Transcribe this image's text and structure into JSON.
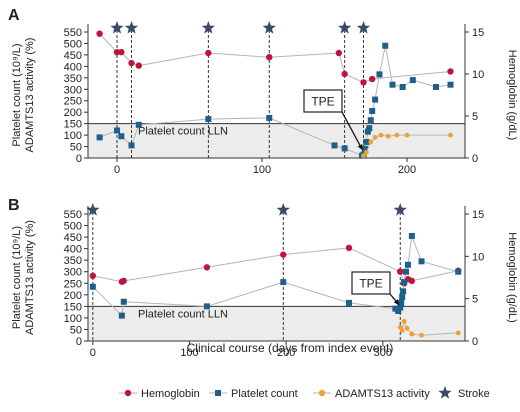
{
  "colors": {
    "hemoglobin": "#c0153a",
    "platelet": "#1f5f8b",
    "adamts13": "#f0a030",
    "stroke": "#3a4a6b",
    "llnFill": "#ececec",
    "connector": "#b5b5b5"
  },
  "xlabel": "Clinical course (days from index event)",
  "legend": {
    "position": "bottom",
    "items": [
      {
        "label": "Hemoglobin",
        "marker": "circle",
        "color": "#c0153a"
      },
      {
        "label": "Platelet count",
        "marker": "square",
        "color": "#1f5f8b"
      },
      {
        "label": "ADAMTS13 activity",
        "marker": "circle",
        "color": "#f0a030"
      },
      {
        "label": "Stroke",
        "marker": "star-icon",
        "color": "#3a4a6b"
      }
    ]
  },
  "chart_data": [
    {
      "panel": "A",
      "type": "line",
      "ylabel_left_line1": "Platelet count (10⁹/L)",
      "ylabel_left_line2": "ADAMTS13 activity (%)",
      "ylabel_right": "Hemoglobin (g/dL)",
      "xlim": [
        -20,
        240
      ],
      "xticks": [
        0,
        100,
        200
      ],
      "ylim_left": [
        0,
        550
      ],
      "yticks_left": [
        0,
        50,
        100,
        150,
        200,
        250,
        300,
        350,
        400,
        450,
        500,
        550
      ],
      "ylim_right": [
        0,
        15
      ],
      "yticks_right": [
        0,
        5,
        10,
        15
      ],
      "lln": 150,
      "lln_label": "Platelet count LLN",
      "annotation": {
        "text": "TPE",
        "x": 170
      },
      "strokes": [
        0,
        10,
        63,
        105,
        157,
        170
      ],
      "series": [
        {
          "name": "Hemoglobin",
          "axis": "right",
          "x": [
            -12,
            0,
            3,
            10,
            15,
            63,
            105,
            153,
            157,
            170,
            176,
            230
          ],
          "y": [
            14.8,
            12.6,
            12.6,
            11.3,
            11.0,
            12.5,
            12.0,
            12.5,
            10.0,
            9.0,
            9.4,
            10.3
          ]
        },
        {
          "name": "Platelet count",
          "axis": "left",
          "x": [
            -12,
            0,
            3,
            10,
            15,
            63,
            105,
            150,
            157,
            169,
            170,
            171,
            172,
            173,
            174,
            175,
            176,
            178,
            181,
            185,
            190,
            197,
            204,
            220,
            230
          ],
          "y": [
            90,
            120,
            95,
            55,
            145,
            170,
            175,
            55,
            42,
            10,
            15,
            40,
            70,
            115,
            130,
            165,
            205,
            255,
            365,
            490,
            320,
            310,
            340,
            310,
            320
          ]
        },
        {
          "name": "ADAMTS13 activity",
          "axis": "left",
          "x": [
            170,
            172,
            175,
            178,
            182,
            187,
            193,
            200,
            230
          ],
          "y": [
            10,
            25,
            70,
            90,
            100,
            95,
            100,
            100,
            100
          ]
        }
      ]
    },
    {
      "panel": "B",
      "type": "line",
      "ylabel_left_line1": "Platelet count (10⁹/L)",
      "ylabel_left_line2": "ADAMTS13 activity (%)",
      "ylabel_right": "Hemoglobin (g/dL)",
      "xlim": [
        -5,
        385
      ],
      "xticks": [
        0,
        100,
        200,
        300
      ],
      "ylim_left": [
        0,
        550
      ],
      "yticks_left": [
        0,
        50,
        100,
        150,
        200,
        250,
        300,
        350,
        400,
        450,
        500,
        550
      ],
      "ylim_right": [
        0,
        15
      ],
      "yticks_right": [
        0,
        5,
        10,
        15
      ],
      "lln": 150,
      "lln_label": "Platelet count LLN",
      "annotation": {
        "text": "TPE",
        "x": 318
      },
      "strokes": [
        0,
        197,
        318
      ],
      "series": [
        {
          "name": "Hemoglobin",
          "axis": "right",
          "x": [
            0,
            30,
            32,
            118,
            197,
            265,
            318,
            322,
            326,
            330,
            378
          ],
          "y": [
            7.7,
            7.0,
            7.1,
            8.7,
            10.2,
            11.0,
            8.2,
            6.8,
            7.3,
            7.1,
            8.3
          ]
        },
        {
          "name": "Platelet count",
          "axis": "left",
          "x": [
            0,
            30,
            32,
            118,
            197,
            265,
            313,
            316,
            318,
            319,
            320,
            321,
            322,
            324,
            326,
            330,
            340,
            378
          ],
          "y": [
            235,
            110,
            170,
            150,
            255,
            165,
            140,
            130,
            145,
            165,
            190,
            215,
            255,
            300,
            330,
            455,
            345,
            300
          ]
        },
        {
          "name": "ADAMTS13 activity",
          "axis": "left",
          "x": [
            318,
            320,
            322,
            325,
            330,
            340,
            378
          ],
          "y": [
            60,
            45,
            85,
            55,
            30,
            25,
            35
          ]
        }
      ]
    }
  ]
}
